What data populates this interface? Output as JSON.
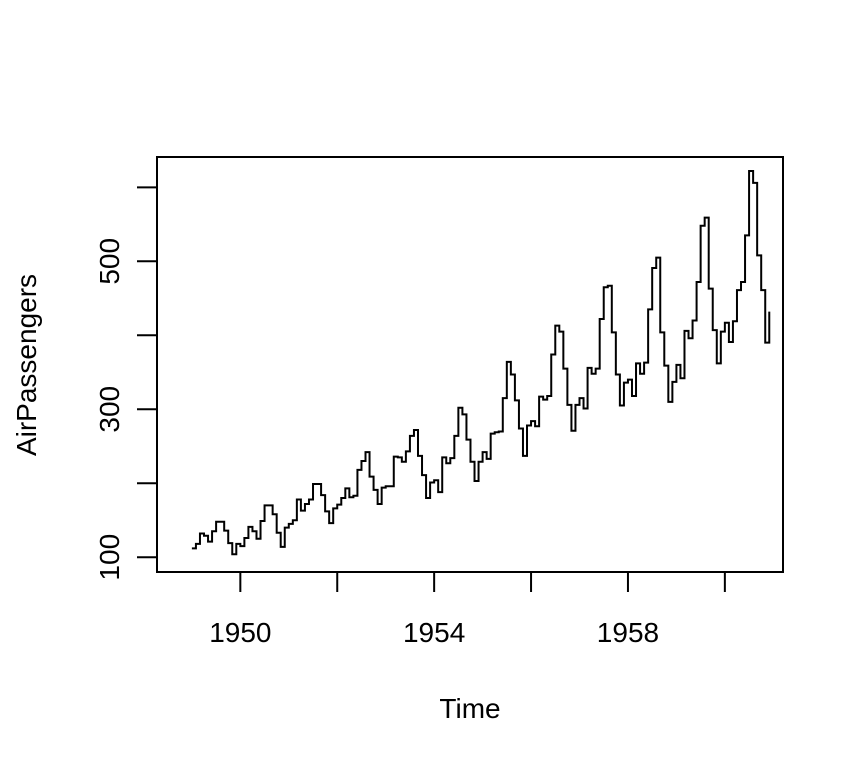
{
  "chart_data": {
    "type": "line",
    "line_style": "step",
    "title": "",
    "xlabel": "Time",
    "ylabel": "AirPassengers",
    "xlim": [
      1948.28,
      1961.2
    ],
    "ylim": [
      80,
      641
    ],
    "x_ticks": [
      1950,
      1952,
      1954,
      1956,
      1958,
      1960
    ],
    "x_tick_labels": [
      "1950",
      "",
      "1954",
      "",
      "1958",
      ""
    ],
    "y_ticks": [
      100,
      200,
      300,
      400,
      500,
      600
    ],
    "y_tick_labels": [
      "100",
      "",
      "300",
      "",
      "500",
      ""
    ],
    "grid": false,
    "color": "#000000",
    "x_start": 1949.0,
    "x_step": 0.0833333333,
    "series": [
      {
        "values": [
          112,
          118,
          132,
          129,
          121,
          135,
          148,
          148,
          136,
          119,
          104,
          118,
          115,
          126,
          141,
          135,
          125,
          149,
          170,
          170,
          158,
          133,
          114,
          140,
          145,
          150,
          178,
          163,
          172,
          178,
          199,
          199,
          184,
          162,
          146,
          166,
          171,
          180,
          193,
          181,
          183,
          218,
          230,
          242,
          209,
          191,
          172,
          194,
          196,
          196,
          236,
          235,
          229,
          243,
          264,
          272,
          237,
          211,
          180,
          201,
          204,
          188,
          235,
          227,
          234,
          264,
          302,
          293,
          259,
          229,
          203,
          229,
          242,
          233,
          267,
          269,
          270,
          315,
          364,
          347,
          312,
          274,
          237,
          278,
          284,
          277,
          317,
          313,
          318,
          374,
          413,
          405,
          355,
          306,
          271,
          306,
          315,
          301,
          356,
          348,
          355,
          422,
          465,
          467,
          404,
          347,
          305,
          336,
          340,
          318,
          362,
          348,
          363,
          435,
          491,
          505,
          404,
          359,
          310,
          337,
          360,
          342,
          406,
          396,
          420,
          472,
          548,
          559,
          463,
          407,
          362,
          405,
          417,
          391,
          419,
          461,
          472,
          535,
          622,
          606,
          508,
          461,
          390,
          432
        ]
      }
    ]
  }
}
